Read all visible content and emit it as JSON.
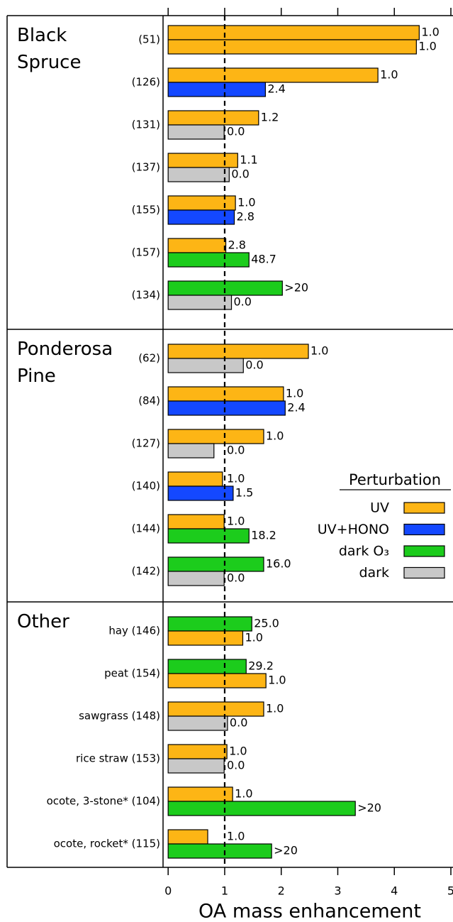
{
  "chart_data": {
    "type": "bar",
    "orientation": "horizontal",
    "x_label": "OA mass enhancement",
    "xlim": [
      -0.09,
      5
    ],
    "xticks": [
      0,
      1,
      2,
      3,
      4,
      5
    ],
    "reference_line": 1,
    "legend_title": "Perturbation",
    "series": [
      {
        "name": "UV",
        "color": "#fdb515"
      },
      {
        "name": "UV+HONO",
        "color": "#1448ff"
      },
      {
        "name": "dark O₃",
        "color": "#1ccc1c"
      },
      {
        "name": "dark",
        "color": "#c8c8c8"
      }
    ],
    "groups": [
      {
        "name": "Black Spruce",
        "items": [
          {
            "label": "(51)",
            "bars": [
              {
                "series": 0,
                "value": 4.44,
                "note": "1.0"
              },
              {
                "series": 0,
                "value": 4.39,
                "note": "1.0"
              }
            ]
          },
          {
            "label": "(126)",
            "bars": [
              {
                "series": 0,
                "value": 3.71,
                "note": "1.0"
              },
              {
                "series": 1,
                "value": 1.72,
                "note": "2.4"
              }
            ]
          },
          {
            "label": "(131)",
            "bars": [
              {
                "series": 0,
                "value": 1.6,
                "note": "1.2"
              },
              {
                "series": 3,
                "value": 0.99,
                "note": "0.0"
              }
            ]
          },
          {
            "label": "(137)",
            "bars": [
              {
                "series": 0,
                "value": 1.23,
                "note": "1.1"
              },
              {
                "series": 3,
                "value": 1.08,
                "note": "0.0"
              }
            ]
          },
          {
            "label": "(155)",
            "bars": [
              {
                "series": 0,
                "value": 1.19,
                "note": "1.0"
              },
              {
                "series": 1,
                "value": 1.17,
                "note": "2.8"
              }
            ]
          },
          {
            "label": "(157)",
            "bars": [
              {
                "series": 0,
                "value": 1.02,
                "note": "2.8"
              },
              {
                "series": 2,
                "value": 1.43,
                "note": "48.7"
              }
            ]
          },
          {
            "label": "(134)",
            "bars": [
              {
                "series": 2,
                "value": 2.02,
                "note": ">20"
              },
              {
                "series": 3,
                "value": 1.12,
                "note": "0.0"
              }
            ]
          }
        ]
      },
      {
        "name": "Ponderosa Pine",
        "items": [
          {
            "label": "(62)",
            "bars": [
              {
                "series": 0,
                "value": 2.48,
                "note": "1.0"
              },
              {
                "series": 3,
                "value": 1.33,
                "note": "0.0"
              }
            ]
          },
          {
            "label": "(84)",
            "bars": [
              {
                "series": 0,
                "value": 2.04,
                "note": "1.0"
              },
              {
                "series": 1,
                "value": 2.07,
                "note": "2.4"
              }
            ]
          },
          {
            "label": "(127)",
            "bars": [
              {
                "series": 0,
                "value": 1.69,
                "note": "1.0"
              },
              {
                "series": 3,
                "value": 0.81,
                "note": "0.0"
              }
            ]
          },
          {
            "label": "(140)",
            "bars": [
              {
                "series": 0,
                "value": 0.96,
                "note": "1.0"
              },
              {
                "series": 1,
                "value": 1.15,
                "note": "1.5"
              }
            ]
          },
          {
            "label": "(144)",
            "bars": [
              {
                "series": 0,
                "value": 0.99,
                "note": "1.0"
              },
              {
                "series": 2,
                "value": 1.43,
                "note": "18.2"
              }
            ]
          },
          {
            "label": "(142)",
            "bars": [
              {
                "series": 2,
                "value": 1.69,
                "note": "16.0"
              },
              {
                "series": 3,
                "value": 0.99,
                "note": "0.0"
              }
            ]
          }
        ]
      },
      {
        "name": "Other",
        "items": [
          {
            "label": "hay (146)",
            "bars": [
              {
                "series": 2,
                "value": 1.48,
                "note": "25.0"
              },
              {
                "series": 0,
                "value": 1.32,
                "note": "1.0"
              }
            ]
          },
          {
            "label": "peat (154)",
            "bars": [
              {
                "series": 2,
                "value": 1.38,
                "note": "29.2"
              },
              {
                "series": 0,
                "value": 1.73,
                "note": "1.0"
              }
            ]
          },
          {
            "label": "sawgrass (148)",
            "bars": [
              {
                "series": 0,
                "value": 1.69,
                "note": "1.0"
              },
              {
                "series": 3,
                "value": 1.05,
                "note": "0.0"
              }
            ]
          },
          {
            "label": "rice straw (153)",
            "bars": [
              {
                "series": 0,
                "value": 1.04,
                "note": "1.0"
              },
              {
                "series": 3,
                "value": 0.99,
                "note": "0.0"
              }
            ]
          },
          {
            "label": "ocote, 3-stone* (104)",
            "bars": [
              {
                "series": 0,
                "value": 1.14,
                "note": "1.0"
              },
              {
                "series": 2,
                "value": 3.31,
                "note": ">20"
              }
            ]
          },
          {
            "label": "ocote, rocket* (115)",
            "bars": [
              {
                "series": 0,
                "value": 0.7,
                "note": "1.0"
              },
              {
                "series": 2,
                "value": 1.83,
                "note": ">20"
              }
            ]
          }
        ]
      }
    ]
  }
}
